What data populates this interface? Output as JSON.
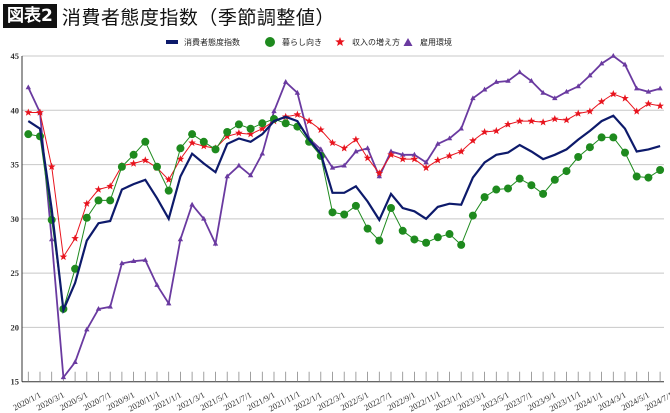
{
  "header": {
    "tag": "図表2",
    "title": "消費者態度指数（季節調整値）"
  },
  "chart_data": {
    "type": "line",
    "title": "消費者態度指数（季節調整値）",
    "xlabel": "",
    "ylabel": "",
    "ylim": [
      15,
      45
    ],
    "yticks": [
      15,
      20,
      25,
      30,
      35,
      40,
      45
    ],
    "grid": true,
    "legend_position": "top-center",
    "categories": [
      "2020/1/1",
      "2020/2/1",
      "2020/3/1",
      "2020/4/1",
      "2020/5/1",
      "2020/6/1",
      "2020/7/1",
      "2020/8/1",
      "2020/9/1",
      "2020/10/1",
      "2020/11/1",
      "2020/12/1",
      "2021/1/1",
      "2021/2/1",
      "2021/3/1",
      "2021/4/1",
      "2021/5/1",
      "2021/6/1",
      "2021/7/1",
      "2021/8/1",
      "2021/9/1",
      "2021/10/1",
      "2021/11/1",
      "2021/12/1",
      "2022/1/1",
      "2022/2/1",
      "2022/3/1",
      "2022/4/1",
      "2022/5/1",
      "2022/6/1",
      "2022/7/1",
      "2022/8/1",
      "2022/9/1",
      "2022/10/1",
      "2022/11/1",
      "2022/12/1",
      "2023/1/1",
      "2023/2/1",
      "2023/3/1",
      "2023/4/1",
      "2023/5/1",
      "2023/6/1",
      "2023/7/1",
      "2023/8/1",
      "2023/9/1",
      "2023/10/1",
      "2023/11/1",
      "2023/12/1",
      "2024/1/1",
      "2024/2/1",
      "2024/3/1",
      "2024/4/1",
      "2024/5/1",
      "2024/6/1",
      "2024/7/1"
    ],
    "series": [
      {
        "name": "消費者態度指数",
        "color": "#0d1a6b",
        "marker": "none",
        "values": [
          39.0,
          38.3,
          30.9,
          21.6,
          24.1,
          28.0,
          29.6,
          29.8,
          32.7,
          33.2,
          33.6,
          31.9,
          30.0,
          33.9,
          36.0,
          35.1,
          34.3,
          36.9,
          37.4,
          37.1,
          37.8,
          39.0,
          39.4,
          39.0,
          37.3,
          36.0,
          32.4,
          32.4,
          33.0,
          31.6,
          29.9,
          32.3,
          31.0,
          30.7,
          30.0,
          31.1,
          31.4,
          31.3,
          33.8,
          35.2,
          35.9,
          36.1,
          36.8,
          36.2,
          35.5,
          35.9,
          36.4,
          37.3,
          38.1,
          39.0,
          39.5,
          38.3,
          36.2,
          36.4,
          36.7
        ]
      },
      {
        "name": "暮らし向き",
        "color": "#1e8a1e",
        "marker": "circle",
        "values": [
          37.8,
          37.6,
          29.9,
          21.7,
          25.4,
          30.1,
          31.7,
          31.7,
          34.8,
          35.9,
          37.1,
          34.8,
          32.6,
          36.5,
          37.8,
          37.1,
          36.4,
          38.0,
          38.7,
          38.3,
          38.8,
          39.2,
          38.8,
          38.5,
          37.1,
          35.8,
          30.6,
          30.4,
          31.2,
          29.1,
          28.0,
          31.0,
          28.9,
          28.1,
          27.8,
          28.3,
          28.6,
          27.6,
          30.3,
          32.0,
          32.7,
          32.8,
          33.7,
          33.1,
          32.3,
          33.6,
          34.4,
          35.7,
          36.6,
          37.5,
          37.5,
          36.1,
          33.9,
          33.8,
          34.5
        ]
      },
      {
        "name": "収入の増え方",
        "color": "#e8141e",
        "marker": "star",
        "values": [
          39.8,
          39.8,
          34.8,
          26.5,
          28.2,
          31.4,
          32.7,
          33.0,
          34.9,
          35.1,
          35.4,
          34.7,
          33.6,
          35.5,
          37.0,
          36.7,
          36.5,
          37.6,
          37.9,
          37.8,
          38.3,
          39.0,
          39.4,
          39.6,
          39.0,
          38.2,
          37.0,
          36.5,
          37.3,
          35.6,
          34.2,
          35.9,
          35.5,
          35.5,
          34.7,
          35.4,
          35.8,
          36.2,
          37.2,
          38.0,
          38.1,
          38.7,
          39.0,
          39.0,
          38.9,
          39.2,
          39.1,
          39.7,
          39.9,
          40.8,
          41.5,
          41.1,
          39.9,
          40.6,
          40.4
        ]
      },
      {
        "name": "雇用環境",
        "color": "#6a3aa0",
        "marker": "triangle",
        "values": [
          42.1,
          39.8,
          28.1,
          15.4,
          16.8,
          19.8,
          21.7,
          21.9,
          25.9,
          26.1,
          26.2,
          23.9,
          22.2,
          28.1,
          31.3,
          30.0,
          27.7,
          33.9,
          34.9,
          34.0,
          36.0,
          39.9,
          42.6,
          41.6,
          37.4,
          36.4,
          34.7,
          34.9,
          36.2,
          36.5,
          33.9,
          36.2,
          35.9,
          35.9,
          35.2,
          36.9,
          37.4,
          38.3,
          41.1,
          41.9,
          42.6,
          42.7,
          43.5,
          42.7,
          41.6,
          41.1,
          41.7,
          42.2,
          43.2,
          44.3,
          45.0,
          44.2,
          42.0,
          41.7,
          42.0
        ]
      }
    ]
  }
}
